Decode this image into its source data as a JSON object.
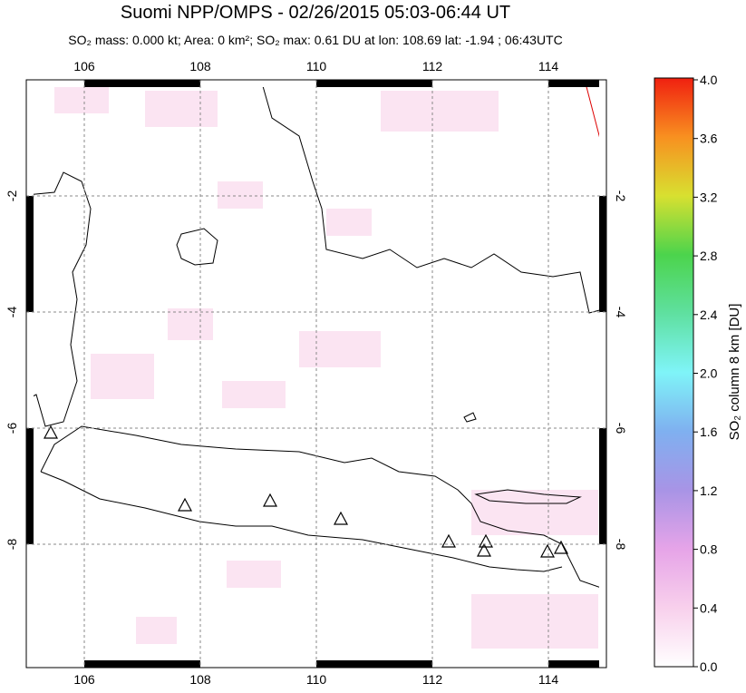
{
  "map": {
    "title": "Suomi NPP/OMPS - 02/26/2015 05:03-06:44 UT",
    "subtitle": "SO₂ mass: 0.000 kt; Area: 0 km²; SO₂ max: 0.61 DU at lon: 108.69 lat: -1.94 ; 06:43UTC",
    "lonlim": [
      105,
      115
    ],
    "latlim": [
      0,
      -10.125
    ],
    "lonticks": [
      106,
      108,
      110,
      112,
      114
    ],
    "latticks": [
      -2,
      -4,
      -6,
      -8
    ],
    "colorbar": {
      "label": "SO₂ column 8 km [DU]",
      "lim": [
        0,
        4
      ],
      "ticks": [
        {
          "value": 0,
          "label": "0.0"
        },
        {
          "value": 0.4,
          "label": "0.4"
        },
        {
          "value": 0.8,
          "label": "0.8"
        },
        {
          "value": 1.2,
          "label": "1.2"
        },
        {
          "value": 1.6,
          "label": "1.6"
        },
        {
          "value": 2.0,
          "label": "2.0"
        },
        {
          "value": 2.4,
          "label": "2.4"
        },
        {
          "value": 2.8,
          "label": "2.8"
        },
        {
          "value": 3.2,
          "label": "3.2"
        },
        {
          "value": 3.6,
          "label": "3.6"
        },
        {
          "value": 4.0,
          "label": "4.0"
        }
      ]
    }
  }
}
